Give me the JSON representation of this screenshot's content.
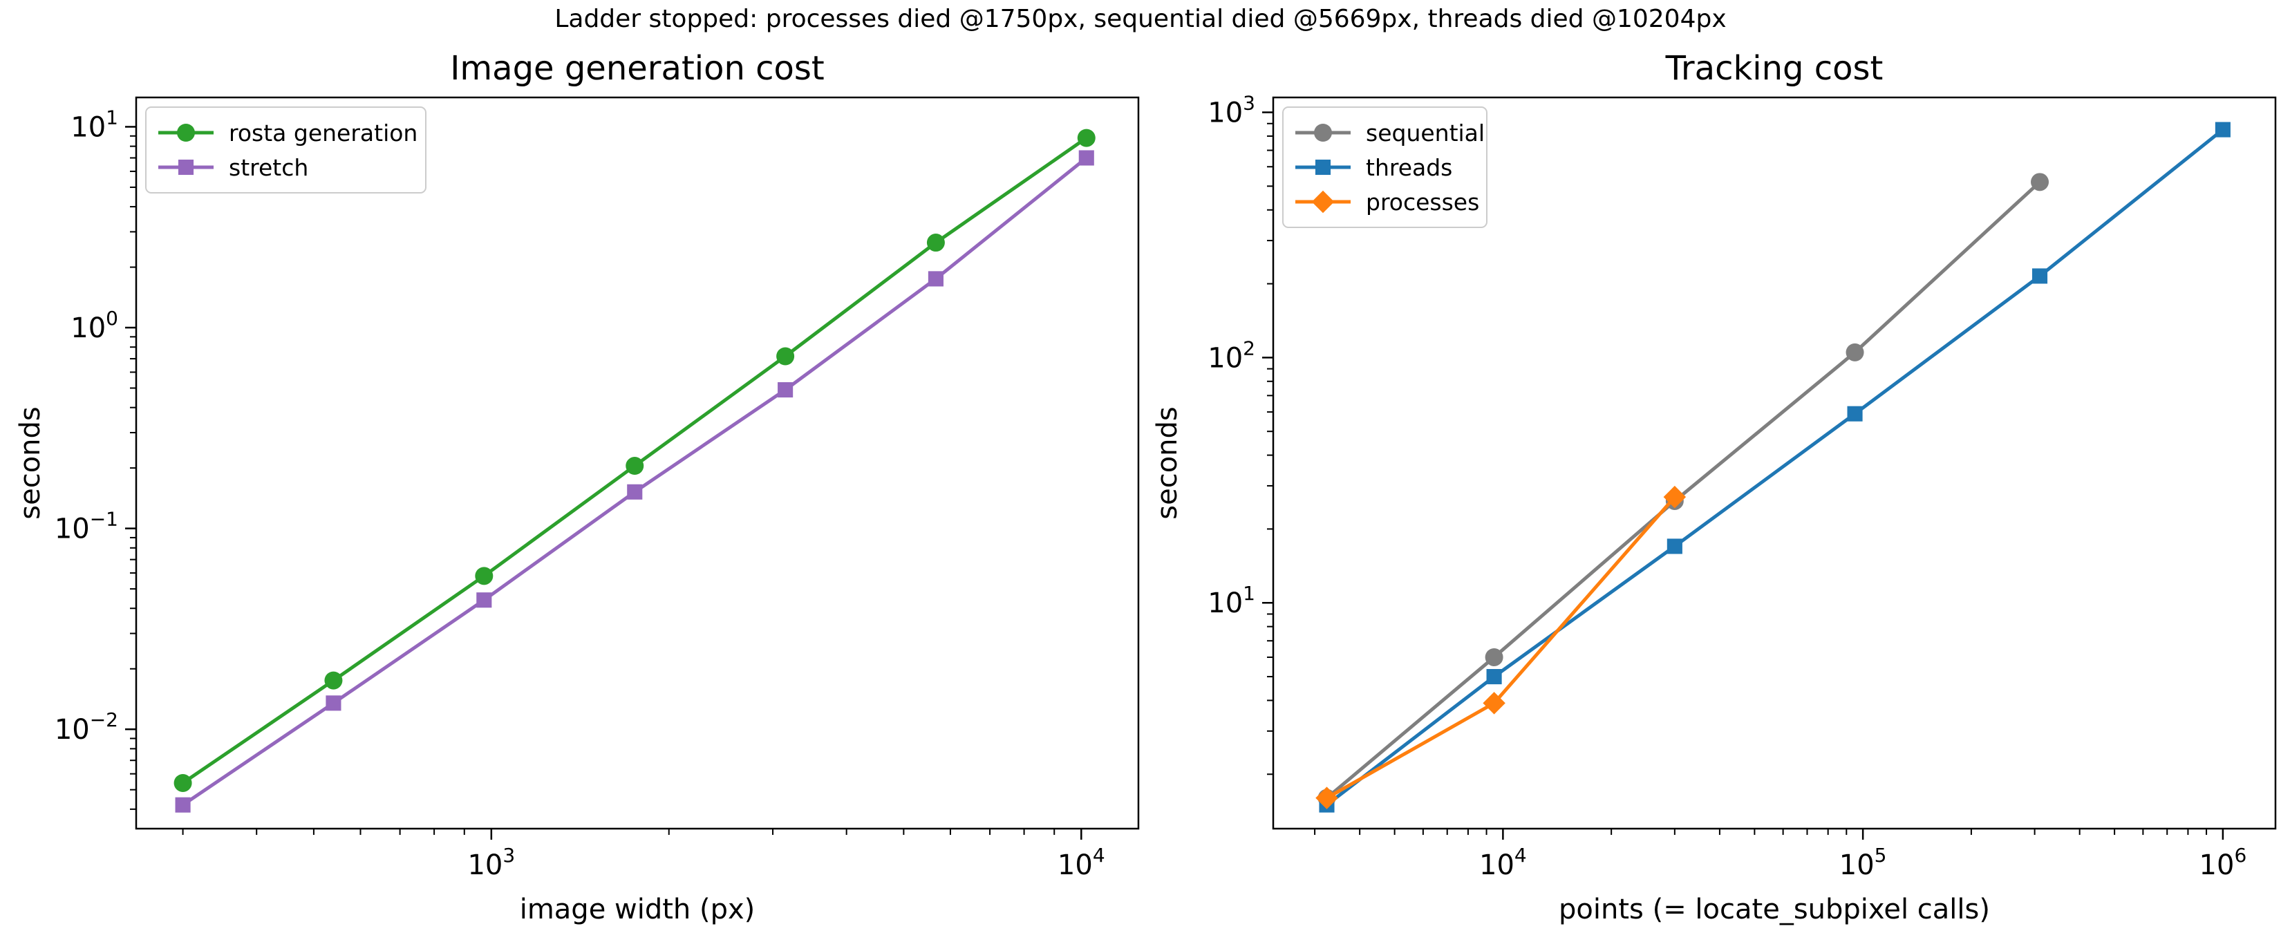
{
  "suptitle": "Ladder stopped: processes died @1750px, sequential died @5669px, threads died @10204px",
  "chart_data": [
    {
      "type": "line",
      "title": "Image generation cost",
      "xlabel": "image width (px)",
      "ylabel": "seconds",
      "xscale": "log",
      "yscale": "log",
      "xlim": [
        250,
        12500
      ],
      "ylim": [
        0.0032,
        14
      ],
      "xticks": [
        {
          "value": 1000,
          "base": "10",
          "exp": "3"
        },
        {
          "value": 10000,
          "base": "10",
          "exp": "4"
        }
      ],
      "yticks": [
        {
          "value": 0.01,
          "base": "10",
          "exp": "−2"
        },
        {
          "value": 0.1,
          "base": "10",
          "exp": "−1"
        },
        {
          "value": 1,
          "base": "10",
          "exp": "0"
        },
        {
          "value": 10,
          "base": "10",
          "exp": "1"
        }
      ],
      "legend": "top-left",
      "series": [
        {
          "name": "rosta generation",
          "color": "#2ca02c",
          "marker": "circle",
          "x": [
            300,
            540,
            972,
            1750,
            3150,
            5669,
            10204
          ],
          "y": [
            0.0054,
            0.0175,
            0.058,
            0.205,
            0.72,
            2.65,
            8.8
          ]
        },
        {
          "name": "stretch",
          "color": "#9467bd",
          "marker": "square",
          "x": [
            300,
            540,
            972,
            1750,
            3150,
            5669,
            10204
          ],
          "y": [
            0.0042,
            0.0135,
            0.044,
            0.152,
            0.49,
            1.75,
            7.0
          ]
        }
      ]
    },
    {
      "type": "line",
      "title": "Tracking cost",
      "xlabel": "points (= locate_subpixel calls)",
      "ylabel": "seconds",
      "xscale": "log",
      "yscale": "log",
      "xlim": [
        2300,
        1400000
      ],
      "ylim": [
        1.2,
        1150
      ],
      "xticks": [
        {
          "value": 10000,
          "base": "10",
          "exp": "4"
        },
        {
          "value": 100000,
          "base": "10",
          "exp": "5"
        },
        {
          "value": 1000000,
          "base": "10",
          "exp": "6"
        }
      ],
      "yticks": [
        {
          "value": 10,
          "base": "10",
          "exp": "1"
        },
        {
          "value": 100,
          "base": "10",
          "exp": "2"
        },
        {
          "value": 1000,
          "base": "10",
          "exp": "3"
        }
      ],
      "legend": "top-left",
      "series": [
        {
          "name": "sequential",
          "color": "#7f7f7f",
          "marker": "circle",
          "x": [
            3240,
            9450,
            30000,
            95000,
            310000
          ],
          "y": [
            1.6,
            6.0,
            26.0,
            105,
            520
          ]
        },
        {
          "name": "threads",
          "color": "#1f77b4",
          "marker": "square",
          "x": [
            3240,
            9450,
            30000,
            95000,
            310000,
            1000000
          ],
          "y": [
            1.5,
            5.0,
            17.0,
            59,
            215,
            850
          ]
        },
        {
          "name": "processes",
          "color": "#ff7f0e",
          "marker": "diamond",
          "x": [
            3240,
            9450,
            30000
          ],
          "y": [
            1.6,
            3.9,
            27.0
          ]
        }
      ]
    }
  ]
}
